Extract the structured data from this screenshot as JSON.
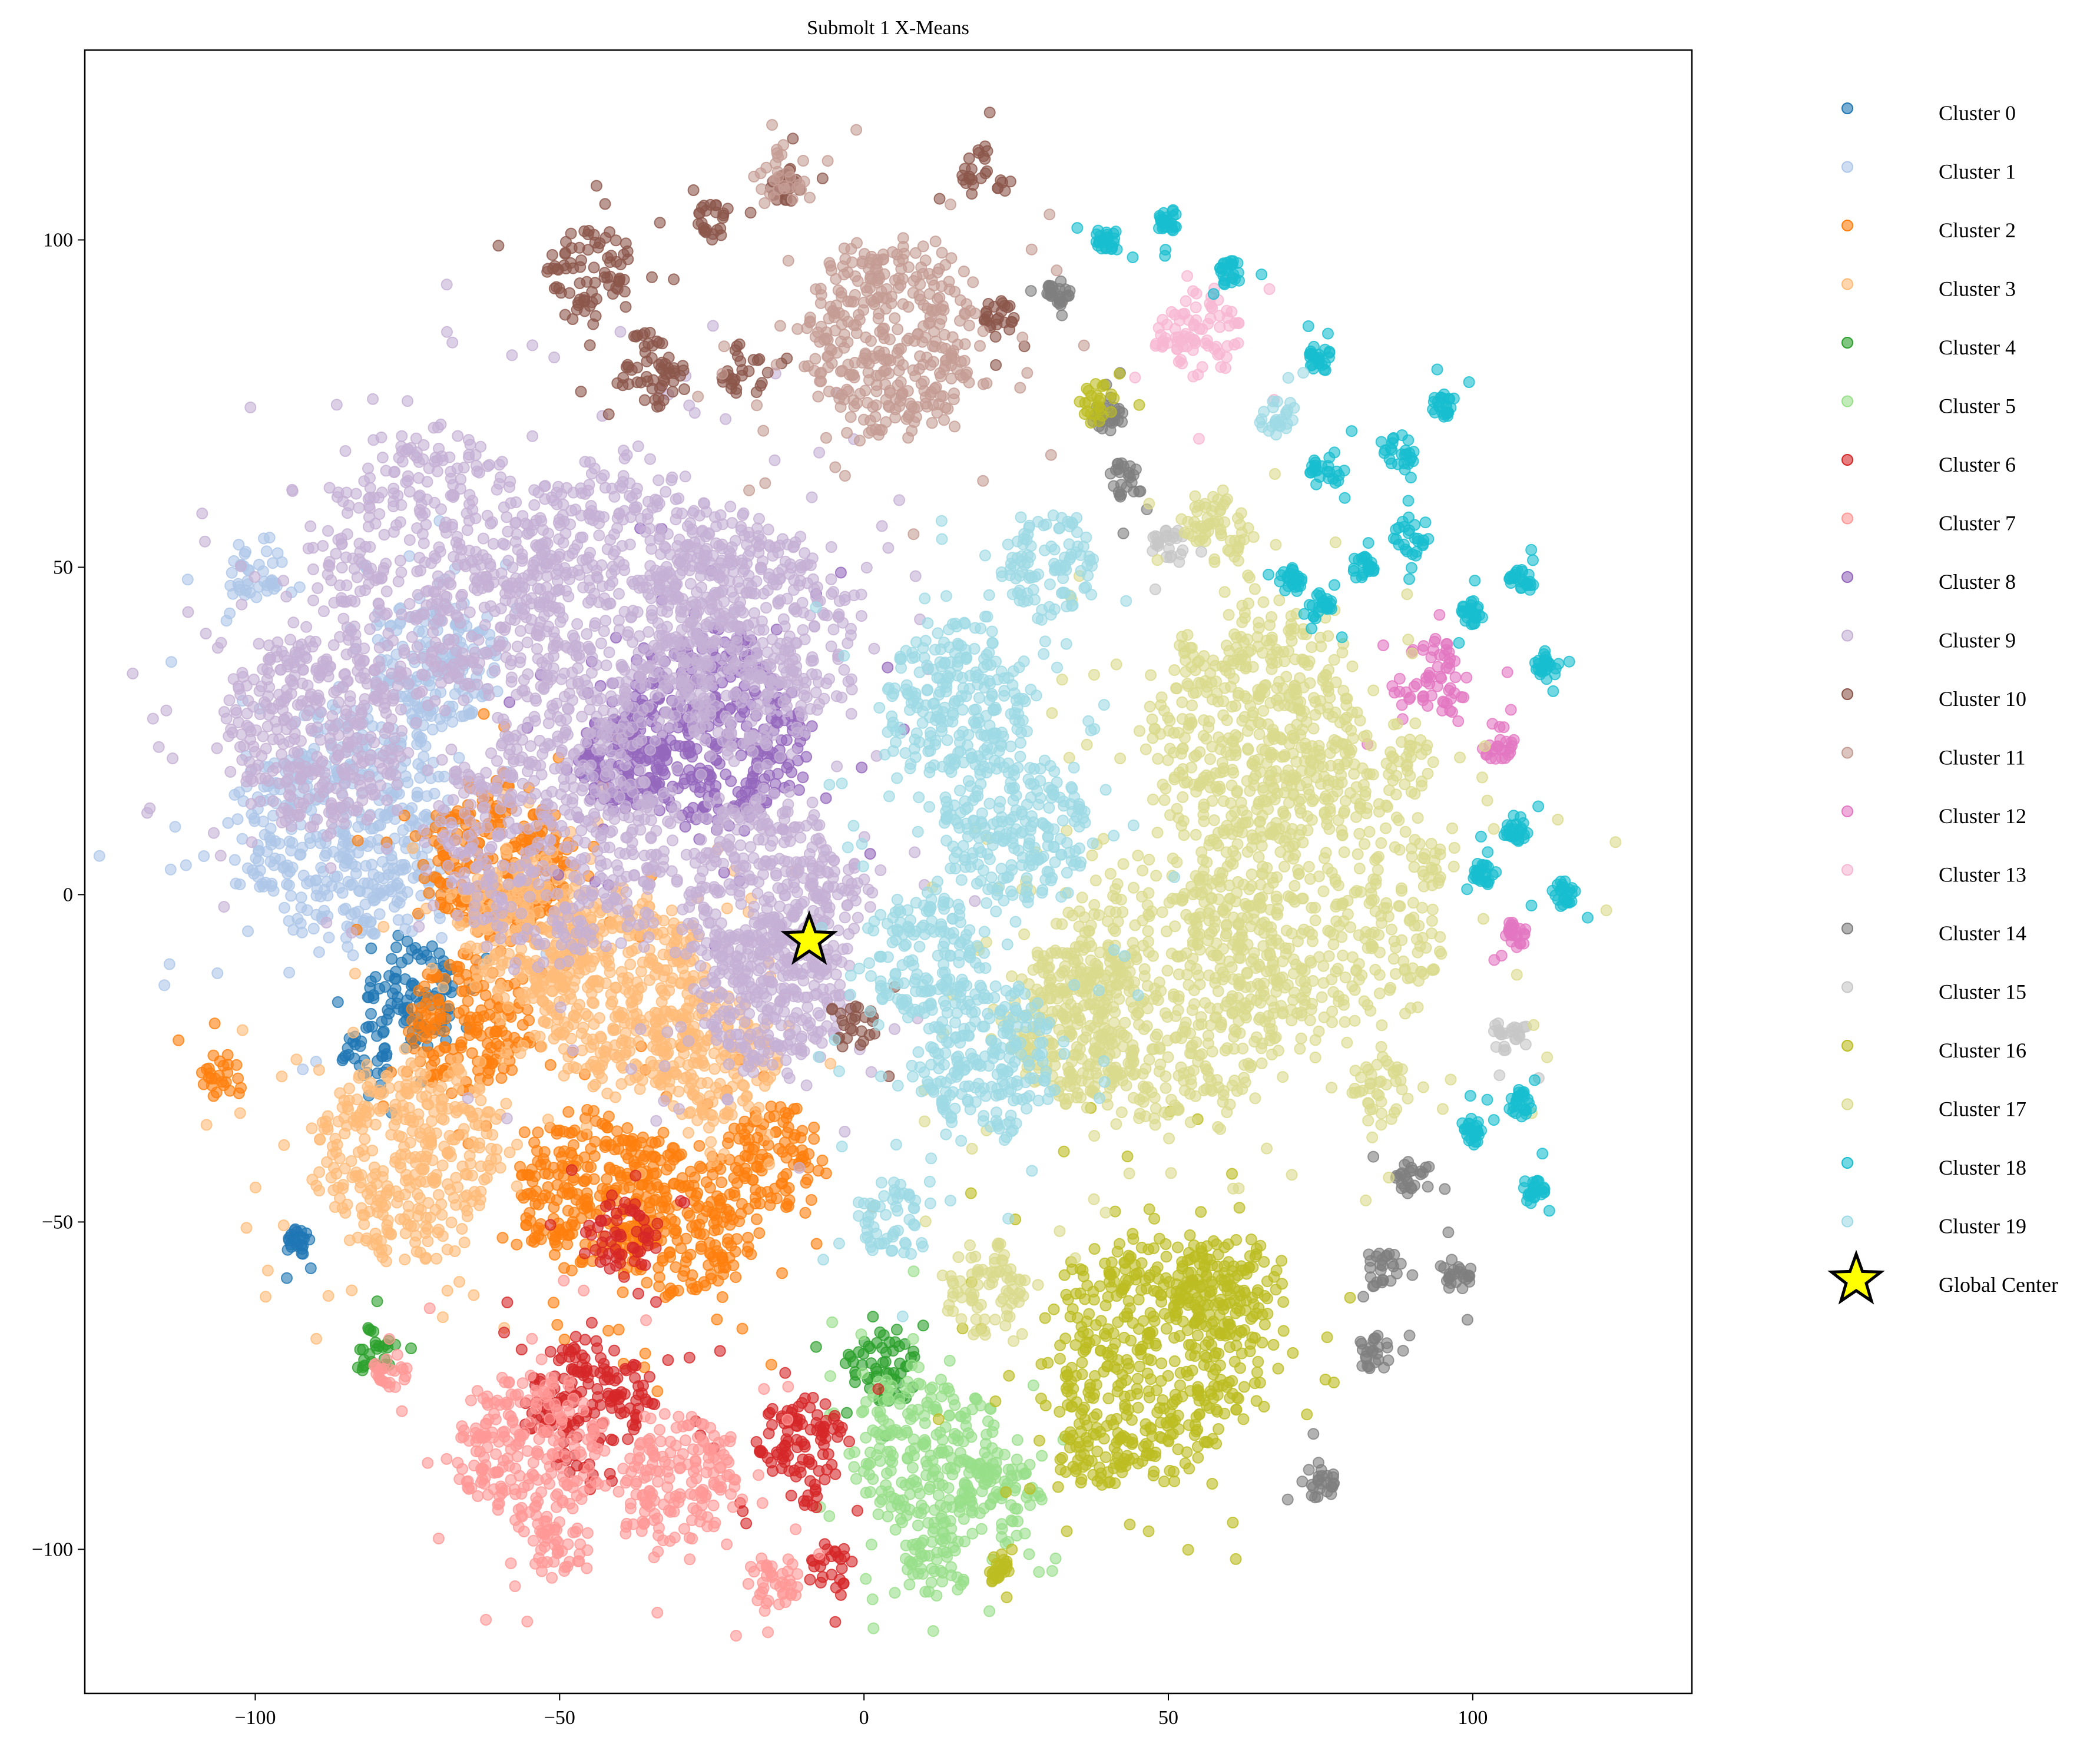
{
  "chart_data": {
    "type": "scatter",
    "title": "Submolt 1 X-Means",
    "xlabel": "",
    "ylabel": "",
    "xlim": [
      -128,
      136
    ],
    "ylim": [
      -122,
      129
    ],
    "xticks": [
      -100,
      -50,
      0,
      50,
      100
    ],
    "yticks": [
      -100,
      -50,
      0,
      50,
      100
    ],
    "xtick_labels": [
      "−100",
      "−50",
      "0",
      "50",
      "100"
    ],
    "ytick_labels": [
      "−100",
      "−50",
      "0",
      "50",
      "100"
    ],
    "grid": false,
    "legend_placement": "outside-right",
    "marker_alpha": 0.6,
    "series": [
      {
        "name": "Cluster 0",
        "color": "#1f77b4",
        "blobs": [
          [
            -75,
            -15,
            8
          ],
          [
            -93,
            -53,
            2
          ],
          [
            -82,
            -25,
            4
          ]
        ]
      },
      {
        "name": "Cluster 1",
        "color": "#aec7e8",
        "blobs": [
          [
            -100,
            50,
            5
          ],
          [
            -85,
            10,
            18
          ],
          [
            -70,
            35,
            10
          ]
        ]
      },
      {
        "name": "Cluster 2",
        "color": "#ff7f0e",
        "blobs": [
          [
            -65,
            -20,
            10
          ],
          [
            -45,
            -45,
            12
          ],
          [
            -30,
            -50,
            12
          ],
          [
            -15,
            -40,
            8
          ],
          [
            -105,
            -27,
            4
          ],
          [
            -60,
            5,
            12
          ]
        ]
      },
      {
        "name": "Cluster 3",
        "color": "#ffbb78",
        "blobs": [
          [
            -75,
            -40,
            15
          ],
          [
            -40,
            -15,
            15
          ],
          [
            -25,
            -25,
            10
          ],
          [
            -55,
            -5,
            12
          ]
        ]
      },
      {
        "name": "Cluster 4",
        "color": "#2ca02c",
        "blobs": [
          [
            -80,
            -70,
            4
          ],
          [
            3,
            -72,
            6
          ]
        ]
      },
      {
        "name": "Cluster 5",
        "color": "#98df8a",
        "blobs": [
          [
            10,
            -85,
            12
          ],
          [
            22,
            -92,
            7
          ],
          [
            12,
            -102,
            6
          ]
        ]
      },
      {
        "name": "Cluster 6",
        "color": "#d62728",
        "blobs": [
          [
            -45,
            -78,
            10
          ],
          [
            -10,
            -85,
            8
          ],
          [
            -40,
            -52,
            6
          ],
          [
            -5,
            -103,
            4
          ]
        ]
      },
      {
        "name": "Cluster 7",
        "color": "#ff9896",
        "blobs": [
          [
            -55,
            -85,
            12
          ],
          [
            -30,
            -90,
            10
          ],
          [
            -15,
            -105,
            5
          ],
          [
            -50,
            -100,
            5
          ],
          [
            -78,
            -73,
            3
          ]
        ]
      },
      {
        "name": "Cluster 8",
        "color": "#9467bd",
        "blobs": [
          [
            -25,
            25,
            15
          ],
          [
            -40,
            20,
            8
          ]
        ]
      },
      {
        "name": "Cluster 9",
        "color": "#c5b0d5",
        "blobs": [
          [
            -70,
            50,
            20
          ],
          [
            -40,
            45,
            20
          ],
          [
            -20,
            40,
            18
          ],
          [
            -90,
            25,
            15
          ],
          [
            -50,
            10,
            20
          ],
          [
            -15,
            0,
            15
          ],
          [
            -15,
            -15,
            12
          ]
        ]
      },
      {
        "name": "Cluster 10",
        "color": "#8c564b",
        "blobs": [
          [
            -45,
            95,
            7
          ],
          [
            -35,
            80,
            6
          ],
          [
            -25,
            103,
            3
          ],
          [
            -20,
            80,
            4
          ],
          [
            20,
            110,
            4
          ],
          [
            -2,
            -20,
            4
          ],
          [
            22,
            88,
            3
          ],
          [
            -13,
            108,
            3
          ]
        ]
      },
      {
        "name": "Cluster 11",
        "color": "#c49c94",
        "blobs": [
          [
            5,
            85,
            15
          ],
          [
            -13,
            110,
            4
          ]
        ]
      },
      {
        "name": "Cluster 12",
        "color": "#e377c2",
        "blobs": [
          [
            93,
            33,
            6
          ],
          [
            104,
            23,
            3
          ],
          [
            107,
            -6,
            2
          ]
        ]
      },
      {
        "name": "Cluster 13",
        "color": "#f7b6d2",
        "blobs": [
          [
            55,
            86,
            7
          ]
        ]
      },
      {
        "name": "Cluster 14",
        "color": "#7f7f7f",
        "blobs": [
          [
            43,
            63,
            3
          ],
          [
            40,
            73,
            3
          ],
          [
            32,
            92,
            2
          ],
          [
            90,
            -43,
            3
          ],
          [
            85,
            -57,
            3
          ],
          [
            97,
            -58,
            3
          ],
          [
            84,
            -70,
            3
          ],
          [
            75,
            -90,
            3
          ]
        ]
      },
      {
        "name": "Cluster 15",
        "color": "#c7c7c7",
        "blobs": [
          [
            50,
            53,
            3
          ],
          [
            106,
            -22,
            3
          ]
        ]
      },
      {
        "name": "Cluster 16",
        "color": "#bcbd22",
        "blobs": [
          [
            48,
            -70,
            18
          ],
          [
            60,
            -60,
            8
          ],
          [
            38,
            -85,
            6
          ],
          [
            38,
            75,
            3
          ],
          [
            22,
            -103,
            2
          ]
        ]
      },
      {
        "name": "Cluster 17",
        "color": "#dbdb8d",
        "blobs": [
          [
            65,
            25,
            18
          ],
          [
            75,
            0,
            22
          ],
          [
            50,
            -15,
            20
          ],
          [
            35,
            -20,
            12
          ],
          [
            20,
            -60,
            7
          ],
          [
            58,
            56,
            6
          ],
          [
            90,
            20,
            4
          ],
          [
            85,
            -30,
            5
          ]
        ]
      },
      {
        "name": "Cluster 18",
        "color": "#17becf",
        "blobs": [
          [
            76,
            65,
            3
          ],
          [
            90,
            55,
            3
          ],
          [
            108,
            48,
            2
          ],
          [
            88,
            68,
            3
          ],
          [
            100,
            43,
            2
          ],
          [
            70,
            48,
            2
          ],
          [
            75,
            44,
            2
          ],
          [
            107,
            10,
            2
          ],
          [
            102,
            3,
            2
          ],
          [
            108,
            -32,
            2
          ],
          [
            100,
            -36,
            2
          ],
          [
            50,
            103,
            2
          ],
          [
            75,
            82,
            2
          ],
          [
            82,
            50,
            2
          ],
          [
            112,
            35,
            2
          ],
          [
            95,
            75,
            2
          ],
          [
            115,
            0,
            2
          ],
          [
            110,
            -45,
            2
          ],
          [
            40,
            100,
            2
          ],
          [
            60,
            95,
            2
          ]
        ]
      },
      {
        "name": "Cluster 19",
        "color": "#9edae5",
        "blobs": [
          [
            15,
            30,
            12
          ],
          [
            25,
            10,
            12
          ],
          [
            10,
            -10,
            10
          ],
          [
            20,
            -25,
            12
          ],
          [
            5,
            -50,
            6
          ],
          [
            30,
            50,
            8
          ],
          [
            68,
            73,
            3
          ]
        ]
      }
    ],
    "global_center": {
      "name": "Global Center",
      "x": -9,
      "y": -7,
      "color": "#ffff00",
      "marker": "star"
    }
  }
}
